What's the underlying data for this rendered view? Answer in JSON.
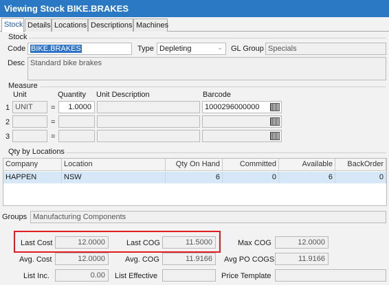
{
  "window": {
    "title": "Viewing Stock BIKE.BRAKES"
  },
  "tabs": [
    "Stock",
    "Details",
    "Locations",
    "Descriptions",
    "Machines"
  ],
  "stock": {
    "section_label": "Stock",
    "code_label": "Code",
    "code_value": "BIKE.BRAKES",
    "type_label": "Type",
    "type_value": "Depleting",
    "gl_label": "GL Group",
    "gl_value": "Specials",
    "desc_label": "Desc",
    "desc_value": "Standard bike brakes"
  },
  "measure": {
    "section_label": "Measure",
    "headers": {
      "unit": "Unit",
      "quantity": "Quantity",
      "unit_desc": "Unit Description",
      "barcode": "Barcode"
    },
    "rows": [
      {
        "num": "1",
        "unit": "UNIT",
        "eq": "=",
        "quantity": "1.0000",
        "unit_desc": "",
        "barcode": "1000296000000"
      },
      {
        "num": "2",
        "unit": "",
        "eq": "=",
        "quantity": "",
        "unit_desc": "",
        "barcode": ""
      },
      {
        "num": "3",
        "unit": "",
        "eq": "=",
        "quantity": "",
        "unit_desc": "",
        "barcode": ""
      }
    ]
  },
  "qty": {
    "section_label": "Qty by Locations",
    "columns": [
      "Company",
      "Location",
      "Qty On Hand",
      "Committed",
      "Available",
      "BackOrder"
    ],
    "rows": [
      {
        "company": "HAPPEN",
        "location": "NSW",
        "on_hand": "6",
        "committed": "0",
        "available": "6",
        "backorder": "0"
      }
    ]
  },
  "groups": {
    "label": "Groups",
    "value": "Manufacturing Components"
  },
  "costs": {
    "last_cost_label": "Last Cost",
    "last_cost": "12.0000",
    "last_cog_label": "Last COG",
    "last_cog": "11.5000",
    "max_cog_label": "Max COG",
    "max_cog": "12.0000",
    "avg_cost_label": "Avg. Cost",
    "avg_cost": "12.0000",
    "avg_cog_label": "Avg. COG",
    "avg_cog": "11.9166",
    "avg_po_label": "Avg PO COGS",
    "avg_po": "11.9166",
    "list_inc_label": "List Inc.",
    "list_inc": "0.00",
    "list_eff_label": "List Effective",
    "list_eff": "",
    "price_tmpl_label": "Price Template",
    "price_tmpl": ""
  },
  "colors": {
    "title_bar": "#2b78c5",
    "highlight_box": "#e11b22",
    "row_selected": "#d6e7f8"
  }
}
